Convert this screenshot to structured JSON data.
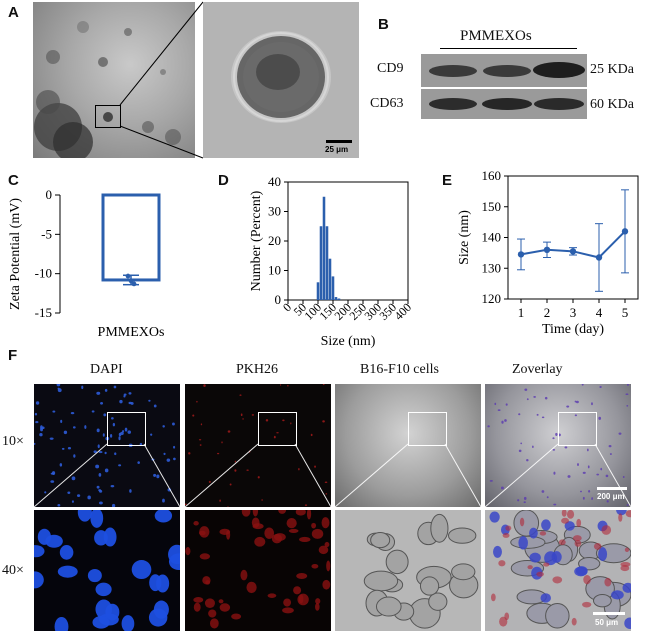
{
  "panel_labels": [
    "A",
    "B",
    "C",
    "D",
    "E",
    "F"
  ],
  "panelA": {
    "scale_bar": "25 μm"
  },
  "panelB": {
    "group_label": "PMMEXOs",
    "bands": [
      {
        "name": "CD9",
        "weight": "25 KDa"
      },
      {
        "name": "CD63",
        "weight": "60 KDa"
      }
    ]
  },
  "chart_data": [
    {
      "panel": "C",
      "type": "bar",
      "categories": [
        "PMMEXOs"
      ],
      "values": [
        -10.8
      ],
      "error": [
        0.6
      ],
      "points": [
        -10.3,
        -10.9,
        -11.3
      ],
      "ylabel": "Zeta Potential (mV)",
      "xlabel": "",
      "ylim": [
        -15,
        0
      ],
      "yticks": [
        0,
        -5,
        -10,
        -15
      ],
      "color": "#2b5fad"
    },
    {
      "panel": "D",
      "type": "bar",
      "x": [
        100,
        110,
        120,
        130,
        140,
        150,
        160,
        170,
        180,
        190
      ],
      "values": [
        6,
        25,
        35,
        25,
        14,
        8,
        1,
        0.5,
        0,
        0
      ],
      "xlabel": "Size (nm)",
      "ylabel": "Number (Percent)",
      "xlim": [
        0,
        400
      ],
      "ylim": [
        0,
        40
      ],
      "xticks": [
        0,
        50,
        100,
        150,
        200,
        250,
        300,
        350,
        400
      ],
      "yticks": [
        0,
        10,
        20,
        30,
        40
      ],
      "color": "#2b5fad"
    },
    {
      "panel": "E",
      "type": "line",
      "x": [
        1,
        2,
        3,
        4,
        5
      ],
      "values": [
        134.5,
        136,
        135.5,
        133.5,
        142
      ],
      "error": [
        5,
        2.5,
        1.2,
        11,
        13.5
      ],
      "xlabel": "Time (day)",
      "ylabel": "Size (nm)",
      "xlim": [
        0.5,
        5.5
      ],
      "ylim": [
        120,
        160
      ],
      "xticks": [
        1,
        2,
        3,
        4,
        5
      ],
      "yticks": [
        120,
        130,
        140,
        150,
        160
      ],
      "color": "#2b5fad"
    }
  ],
  "panelF": {
    "columns": [
      "DAPI",
      "PKH26",
      "B16-F10 cells",
      "Zoverlay"
    ],
    "rows": [
      "10×",
      "40×"
    ],
    "scale_bars": [
      "200 μm",
      "50 μm"
    ]
  }
}
